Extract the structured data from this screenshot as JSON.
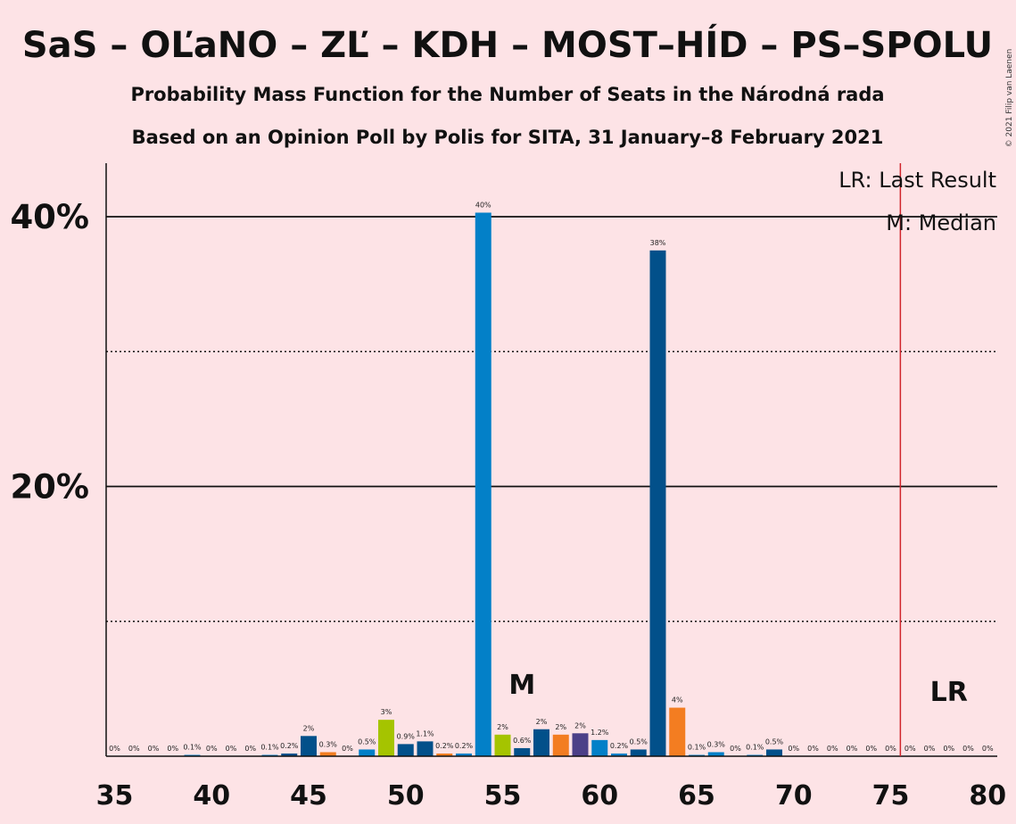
{
  "copyright": "© 2021 Filip van Laenen",
  "chart_data": {
    "type": "bar",
    "title": "SaS – OĽaNO – ZĽ – KDH – MOST–HÍD – PS–SPOLU",
    "subtitle": "Probability Mass Function for the Number of Seats in the Národná rada",
    "subtitle2": "Based on an Opinion Poll by Polis for SITA, 31 January–8 February 2021",
    "xlabel": "",
    "ylabel": "",
    "xlim": [
      35,
      80
    ],
    "ylim": [
      0,
      44
    ],
    "y_ticks": [
      {
        "value": 20,
        "label": "20%"
      },
      {
        "value": 40,
        "label": "40%"
      }
    ],
    "y_minor_ticks": [
      10,
      30
    ],
    "x_tick_labels": [
      "35",
      "40",
      "45",
      "50",
      "55",
      "60",
      "65",
      "70",
      "75",
      "80"
    ],
    "x_tick_values": [
      35,
      40,
      45,
      50,
      55,
      60,
      65,
      70,
      75,
      80
    ],
    "legend": {
      "lr": "LR: Last Result",
      "median": "M: Median",
      "placement": "top-right"
    },
    "last_result": {
      "seats": 76,
      "label": "LR"
    },
    "median": {
      "seats": 56,
      "label": "M"
    },
    "colors": {
      "background": "#fde3e6",
      "light_blue": "#0380c8",
      "dark_blue": "#02508a",
      "orange": "#f37d21",
      "lime": "#a5c400",
      "purple": "#4c4088",
      "last_result_line": "#d0242c"
    },
    "bars": [
      {
        "seats": 35,
        "value": 0,
        "label": "0%",
        "color": "light_blue"
      },
      {
        "seats": 36,
        "value": 0,
        "label": "0%",
        "color": "light_blue"
      },
      {
        "seats": 37,
        "value": 0,
        "label": "0%",
        "color": "light_blue"
      },
      {
        "seats": 38,
        "value": 0,
        "label": "0%",
        "color": "light_blue"
      },
      {
        "seats": 39,
        "value": 0.1,
        "label": "0.1%",
        "color": "light_blue"
      },
      {
        "seats": 40,
        "value": 0,
        "label": "0%",
        "color": "light_blue"
      },
      {
        "seats": 41,
        "value": 0,
        "label": "0%",
        "color": "light_blue"
      },
      {
        "seats": 42,
        "value": 0,
        "label": "0%",
        "color": "light_blue"
      },
      {
        "seats": 43,
        "value": 0.1,
        "label": "0.1%",
        "color": "light_blue"
      },
      {
        "seats": 44,
        "value": 0.2,
        "label": "0.2%",
        "color": "dark_blue"
      },
      {
        "seats": 45,
        "value": 1.5,
        "label": "2%",
        "color": "dark_blue"
      },
      {
        "seats": 46,
        "value": 0.3,
        "label": "0.3%",
        "color": "orange"
      },
      {
        "seats": 47,
        "value": 0,
        "label": "0%",
        "color": "light_blue"
      },
      {
        "seats": 48,
        "value": 0.5,
        "label": "0.5%",
        "color": "light_blue"
      },
      {
        "seats": 49,
        "value": 2.7,
        "label": "3%",
        "color": "lime"
      },
      {
        "seats": 50,
        "value": 0.9,
        "label": "0.9%",
        "color": "dark_blue"
      },
      {
        "seats": 51,
        "value": 1.1,
        "label": "1.1%",
        "color": "dark_blue"
      },
      {
        "seats": 52,
        "value": 0.2,
        "label": "0.2%",
        "color": "orange"
      },
      {
        "seats": 53,
        "value": 0.2,
        "label": "0.2%",
        "color": "light_blue"
      },
      {
        "seats": 54,
        "value": 40.3,
        "label": "40%",
        "color": "light_blue"
      },
      {
        "seats": 55,
        "value": 1.6,
        "label": "2%",
        "color": "lime"
      },
      {
        "seats": 56,
        "value": 0.6,
        "label": "0.6%",
        "color": "dark_blue"
      },
      {
        "seats": 57,
        "value": 2.0,
        "label": "2%",
        "color": "dark_blue"
      },
      {
        "seats": 58,
        "value": 1.6,
        "label": "2%",
        "color": "orange"
      },
      {
        "seats": 59,
        "value": 1.7,
        "label": "2%",
        "color": "purple"
      },
      {
        "seats": 60,
        "value": 1.2,
        "label": "1.2%",
        "color": "light_blue"
      },
      {
        "seats": 61,
        "value": 0.2,
        "label": "0.2%",
        "color": "light_blue"
      },
      {
        "seats": 62,
        "value": 0.5,
        "label": "0.5%",
        "color": "dark_blue"
      },
      {
        "seats": 63,
        "value": 37.5,
        "label": "38%",
        "color": "dark_blue"
      },
      {
        "seats": 64,
        "value": 3.6,
        "label": "4%",
        "color": "orange"
      },
      {
        "seats": 65,
        "value": 0.1,
        "label": "0.1%",
        "color": "light_blue"
      },
      {
        "seats": 66,
        "value": 0.3,
        "label": "0.3%",
        "color": "light_blue"
      },
      {
        "seats": 67,
        "value": 0,
        "label": "0%",
        "color": "light_blue"
      },
      {
        "seats": 68,
        "value": 0.1,
        "label": "0.1%",
        "color": "light_blue"
      },
      {
        "seats": 69,
        "value": 0.5,
        "label": "0.5%",
        "color": "dark_blue"
      },
      {
        "seats": 70,
        "value": 0,
        "label": "0%",
        "color": "light_blue"
      },
      {
        "seats": 71,
        "value": 0,
        "label": "0%",
        "color": "light_blue"
      },
      {
        "seats": 72,
        "value": 0,
        "label": "0%",
        "color": "light_blue"
      },
      {
        "seats": 73,
        "value": 0,
        "label": "0%",
        "color": "light_blue"
      },
      {
        "seats": 74,
        "value": 0,
        "label": "0%",
        "color": "light_blue"
      },
      {
        "seats": 75,
        "value": 0,
        "label": "0%",
        "color": "light_blue"
      },
      {
        "seats": 76,
        "value": 0,
        "label": "0%",
        "color": "light_blue"
      },
      {
        "seats": 77,
        "value": 0,
        "label": "0%",
        "color": "light_blue"
      },
      {
        "seats": 78,
        "value": 0,
        "label": "0%",
        "color": "light_blue"
      },
      {
        "seats": 79,
        "value": 0,
        "label": "0%",
        "color": "light_blue"
      },
      {
        "seats": 80,
        "value": 0,
        "label": "0%",
        "color": "light_blue"
      }
    ]
  }
}
